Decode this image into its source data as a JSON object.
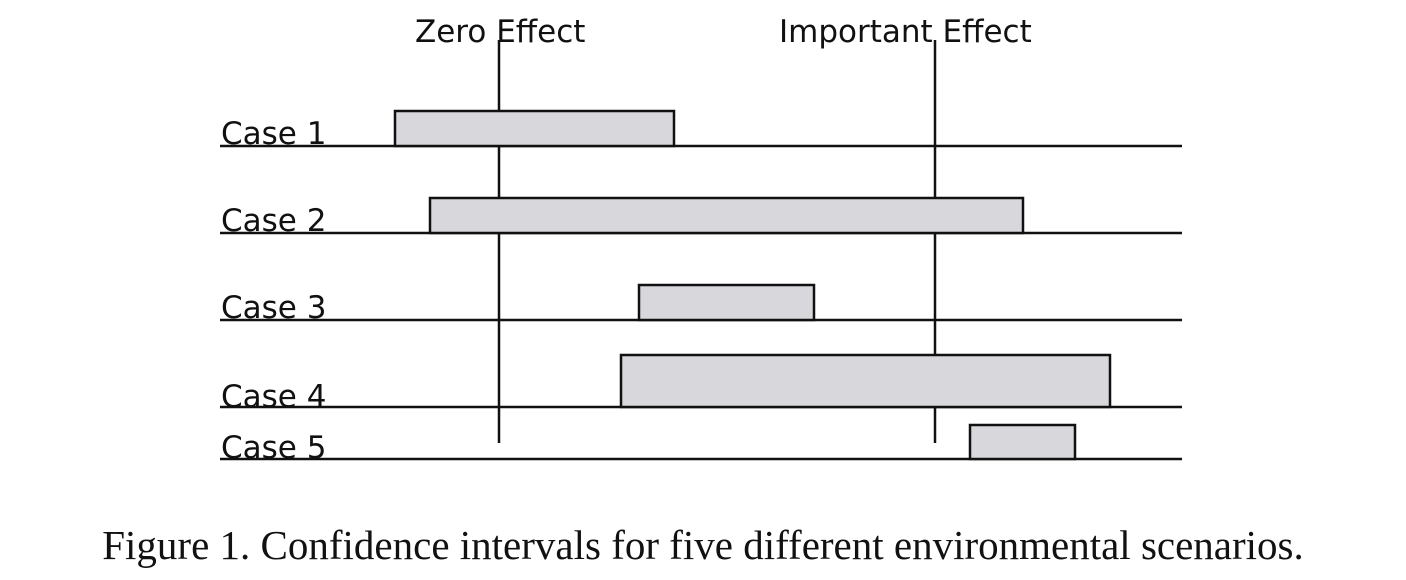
{
  "figure": {
    "caption": "Figure 1.  Confidence intervals for five different environmental scenarios."
  },
  "markers": {
    "zero": "Zero Effect",
    "important": "Important Effect"
  },
  "cases": [
    {
      "label": "Case 1",
      "interval": [
        0.0,
        0.32
      ]
    },
    {
      "label": "Case 2",
      "interval": [
        0.04,
        0.72
      ]
    },
    {
      "label": "Case 3",
      "interval": [
        0.28,
        0.48
      ]
    },
    {
      "label": "Case 4",
      "interval": [
        0.26,
        0.82
      ]
    },
    {
      "label": "Case 5",
      "interval": [
        0.66,
        0.78
      ]
    }
  ],
  "colors": {
    "bar_fill": "#d8d7dc",
    "line": "#111111"
  }
}
